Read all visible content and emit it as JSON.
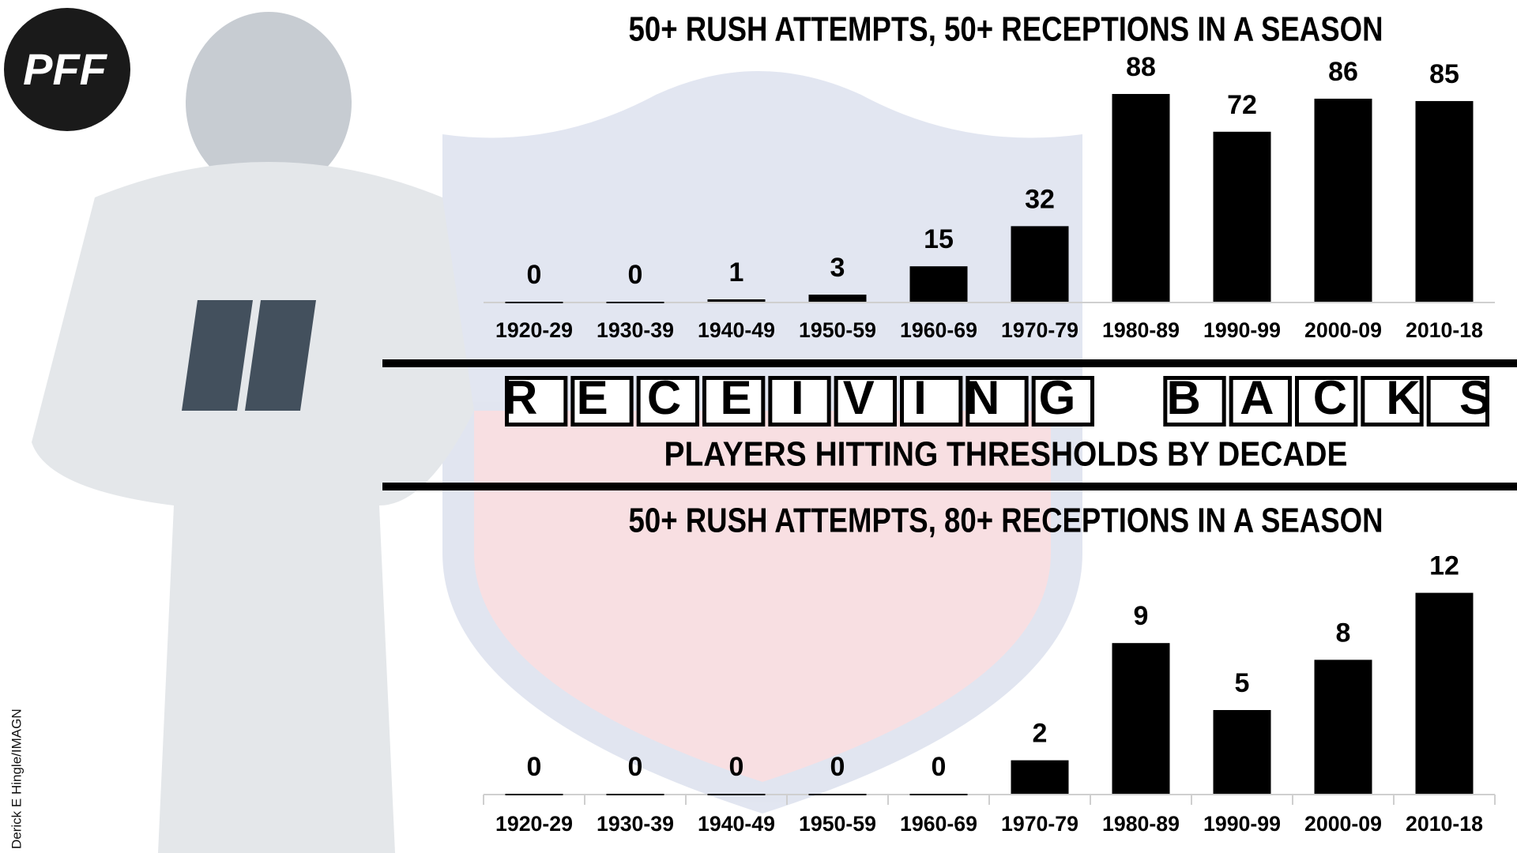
{
  "logo": "PFF",
  "title": "RECEIVING BACKS",
  "subtitle": "PLAYERS HITTING THRESHOLDS BY DECADE",
  "credit": "Derick E Hingle/IMAGN",
  "chart_data": [
    {
      "type": "bar",
      "title": "50+ RUSH ATTEMPTS, 50+ RECEPTIONS IN A SEASON",
      "categories": [
        "1920-29",
        "1930-39",
        "1940-49",
        "1950-59",
        "1960-69",
        "1970-79",
        "1980-89",
        "1990-99",
        "2000-09",
        "2010-18"
      ],
      "values": [
        0,
        0,
        1,
        3,
        15,
        32,
        88,
        72,
        86,
        85
      ],
      "color": "#000000",
      "ylim": [
        0,
        90
      ]
    },
    {
      "type": "bar",
      "title": "50+ RUSH ATTEMPTS, 80+ RECEPTIONS IN A SEASON",
      "categories": [
        "1920-29",
        "1930-39",
        "1940-49",
        "1950-59",
        "1960-69",
        "1970-79",
        "1980-89",
        "1990-99",
        "2000-09",
        "2010-18"
      ],
      "values": [
        0,
        0,
        0,
        0,
        0,
        2,
        9,
        5,
        8,
        12
      ],
      "color": "#000000",
      "ylim": [
        0,
        12.5
      ]
    }
  ]
}
